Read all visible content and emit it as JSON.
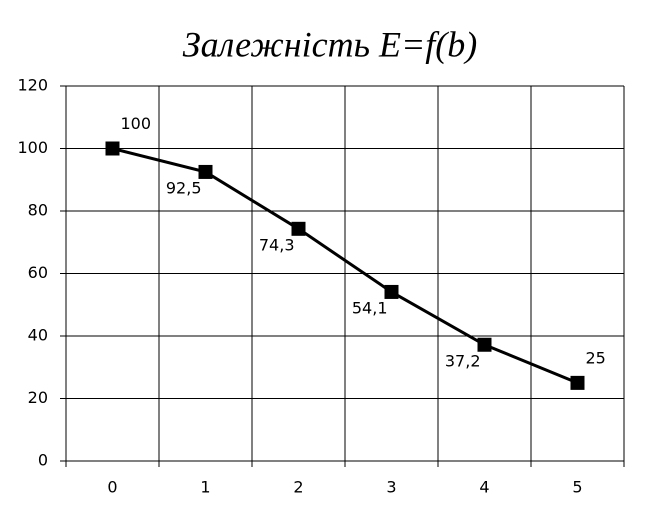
{
  "chart_data": {
    "type": "line",
    "title": "Залежність E=f(b)",
    "categories": [
      "0",
      "1",
      "2",
      "3",
      "4",
      "5"
    ],
    "values": [
      100,
      92.5,
      74.3,
      54.1,
      37.2,
      25
    ],
    "value_labels": [
      "100",
      "92,5",
      "74,3",
      "54,1",
      "37,2",
      "25"
    ],
    "color": "#000000",
    "ylim": [
      0,
      120
    ],
    "yticks": [
      0,
      20,
      40,
      60,
      80,
      100,
      120
    ],
    "grid": true
  }
}
